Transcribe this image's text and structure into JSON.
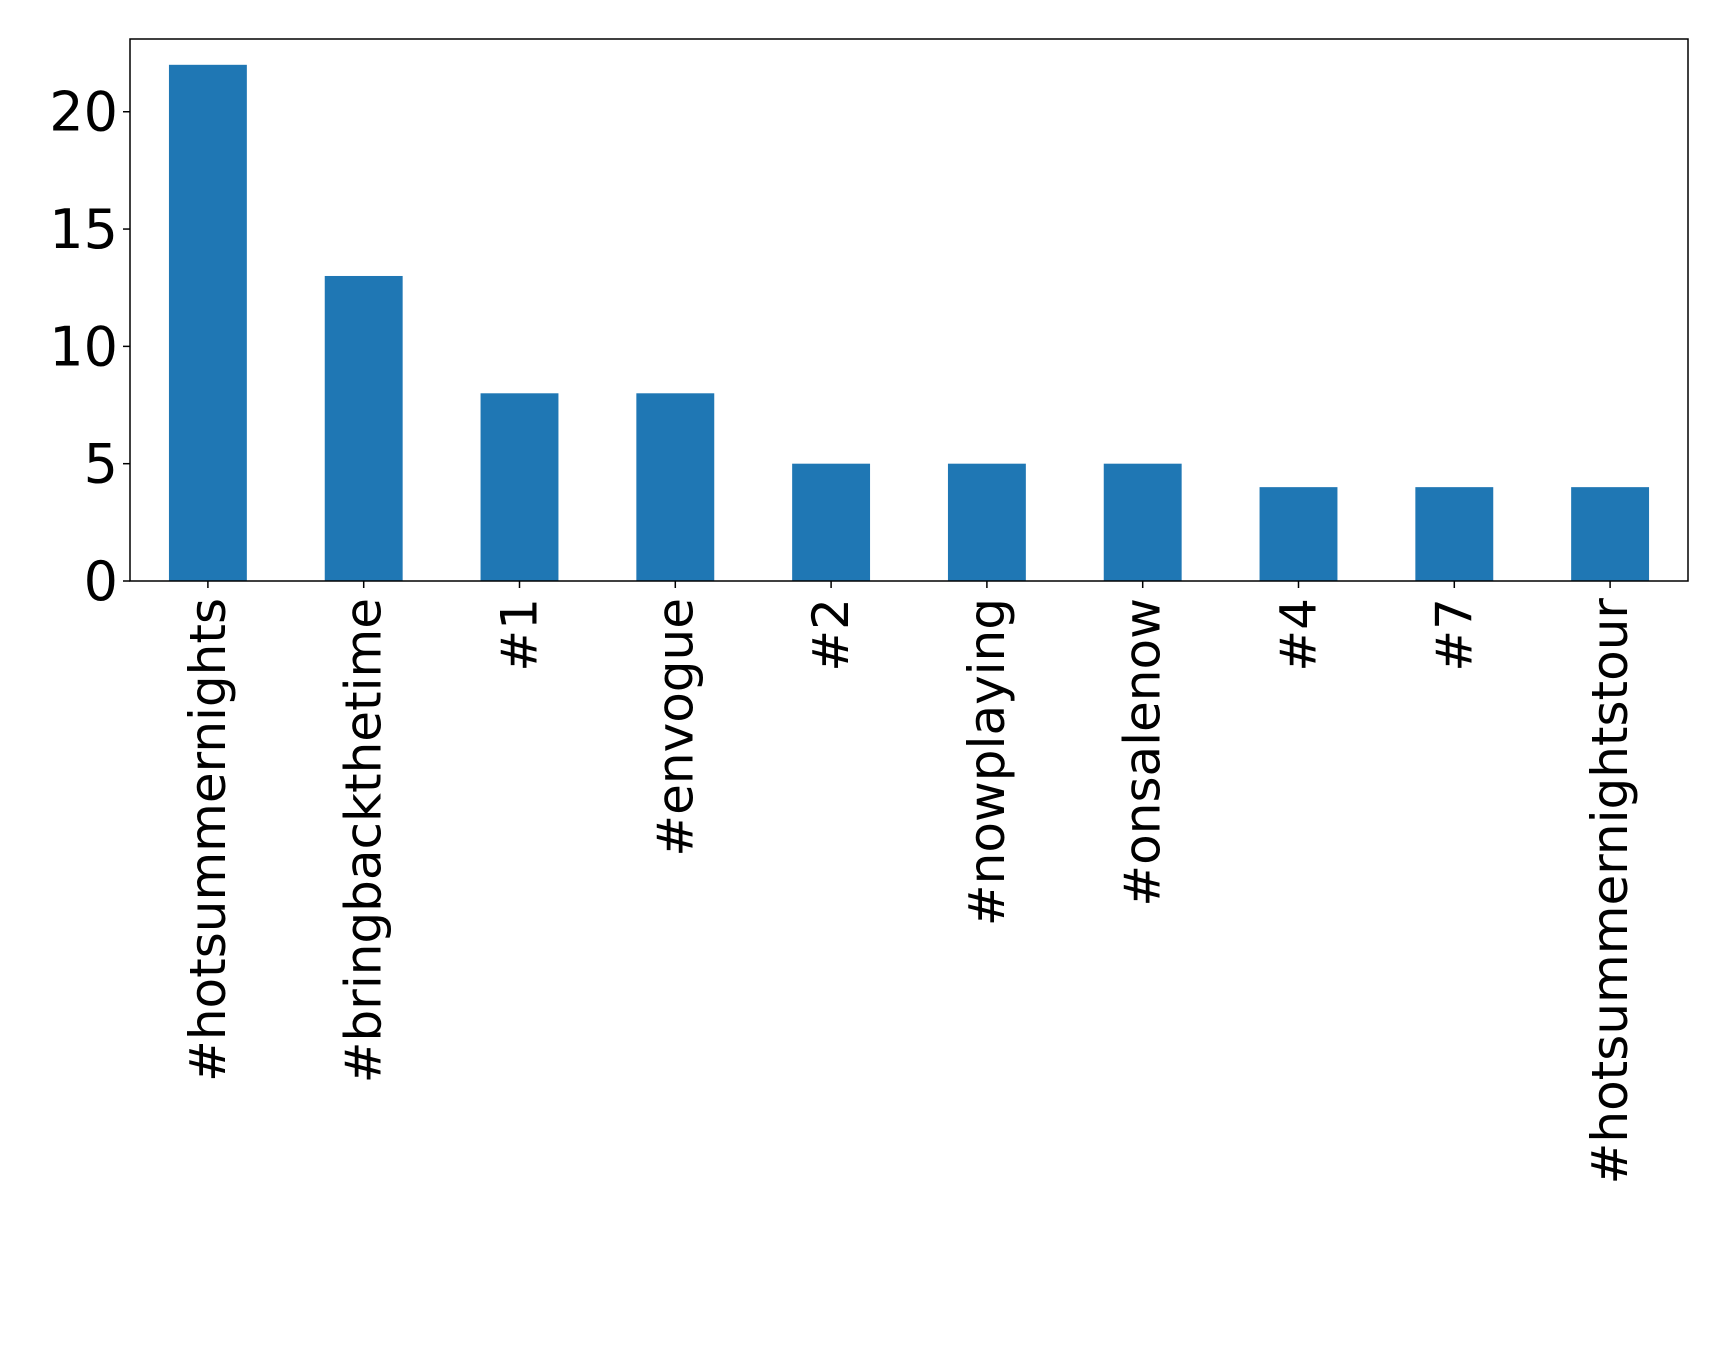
{
  "chart_data": {
    "type": "bar",
    "title": "",
    "xlabel": "",
    "ylabel": "",
    "categories": [
      "#hotsummernights",
      "#bringbackthetime",
      "#1",
      "#envogue",
      "#2",
      "#nowplaying",
      "#onsalenow",
      "#4",
      "#7",
      "#hotsummernightstour"
    ],
    "values": [
      22,
      13,
      8,
      8,
      5,
      5,
      5,
      4,
      4,
      4
    ],
    "ylim": [
      0,
      23.1
    ],
    "yticks": [
      0,
      5,
      10,
      15,
      20
    ],
    "bar_color": "#1f77b4",
    "grid": false,
    "legend": "none"
  }
}
